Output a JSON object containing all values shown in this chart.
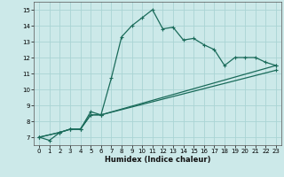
{
  "title": "",
  "xlabel": "Humidex (Indice chaleur)",
  "xlim": [
    -0.5,
    23.5
  ],
  "ylim": [
    6.5,
    15.5
  ],
  "xticks": [
    0,
    1,
    2,
    3,
    4,
    5,
    6,
    7,
    8,
    9,
    10,
    11,
    12,
    13,
    14,
    15,
    16,
    17,
    18,
    19,
    20,
    21,
    22,
    23
  ],
  "yticks": [
    7,
    8,
    9,
    10,
    11,
    12,
    13,
    14,
    15
  ],
  "background_color": "#cce9e9",
  "grid_color": "#aad4d4",
  "line_color": "#1a6b5a",
  "curve1_x": [
    0,
    1,
    2,
    3,
    4,
    5,
    6,
    7,
    8,
    9,
    10,
    11,
    12,
    13,
    14,
    15,
    16,
    17,
    18,
    19,
    20,
    21,
    22,
    23
  ],
  "curve1_y": [
    7.0,
    6.8,
    7.3,
    7.5,
    7.5,
    8.6,
    8.4,
    10.7,
    13.3,
    14.0,
    14.5,
    15.0,
    13.8,
    13.9,
    13.1,
    13.2,
    12.8,
    12.5,
    11.5,
    12.0,
    12.0,
    12.0,
    11.7,
    11.5
  ],
  "curve2_x": [
    0,
    2,
    3,
    4,
    5,
    6,
    23
  ],
  "curve2_y": [
    7.0,
    7.3,
    7.5,
    7.5,
    8.4,
    8.4,
    11.5
  ],
  "curve3_x": [
    0,
    2,
    3,
    4,
    5,
    6,
    23
  ],
  "curve3_y": [
    7.0,
    7.3,
    7.5,
    7.5,
    8.4,
    8.4,
    11.2
  ]
}
